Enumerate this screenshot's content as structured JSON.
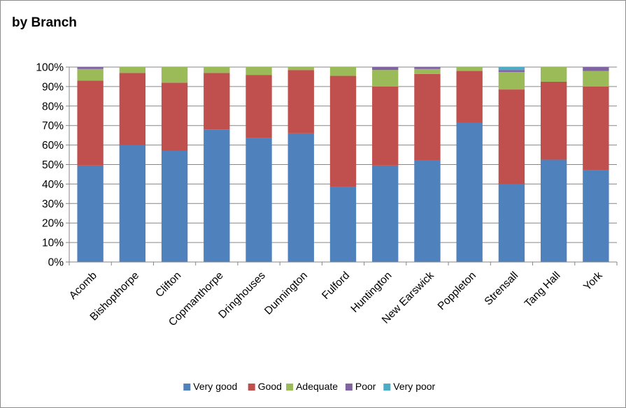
{
  "chart_data": {
    "type": "bar",
    "stacked": true,
    "percent": true,
    "title": "by Branch",
    "categories": [
      "Acomb",
      "Bishopthorpe",
      "Clifton",
      "Copmanthorpe",
      "Dringhouses",
      "Dunnington",
      "Fulford",
      "Huntington",
      "New Earswick",
      "Poppleton",
      "Strensall",
      "Tang Hall",
      "York"
    ],
    "series": [
      {
        "name": "Very good",
        "color": "#4F81BD",
        "values": [
          49.5,
          60,
          57,
          68,
          63.5,
          66,
          38.5,
          49.5,
          52,
          71.5,
          40,
          52.5,
          47
        ]
      },
      {
        "name": "Good",
        "color": "#C0504D",
        "values": [
          43.5,
          37,
          35,
          29,
          32.5,
          32.5,
          57,
          40.5,
          44.5,
          26.5,
          48.5,
          40,
          43
        ]
      },
      {
        "name": "Adequate",
        "color": "#9BBB59",
        "values": [
          6,
          3,
          8,
          3,
          4,
          1.5,
          4.5,
          8.5,
          2.5,
          2,
          9,
          7.5,
          8
        ]
      },
      {
        "name": "Poor",
        "color": "#8064A2",
        "values": [
          1,
          0,
          0,
          0,
          0,
          0,
          0,
          1.5,
          1,
          0,
          1,
          0,
          2
        ]
      },
      {
        "name": "Very poor",
        "color": "#4BACC6",
        "values": [
          0,
          0,
          0,
          0,
          0,
          0,
          0,
          0,
          0,
          0,
          1.5,
          0,
          0
        ]
      }
    ],
    "ylim": [
      0,
      100
    ],
    "yticks": [
      "0%",
      "10%",
      "20%",
      "30%",
      "40%",
      "50%",
      "60%",
      "70%",
      "80%",
      "90%",
      "100%"
    ],
    "grid": true,
    "legend": "bottom"
  }
}
